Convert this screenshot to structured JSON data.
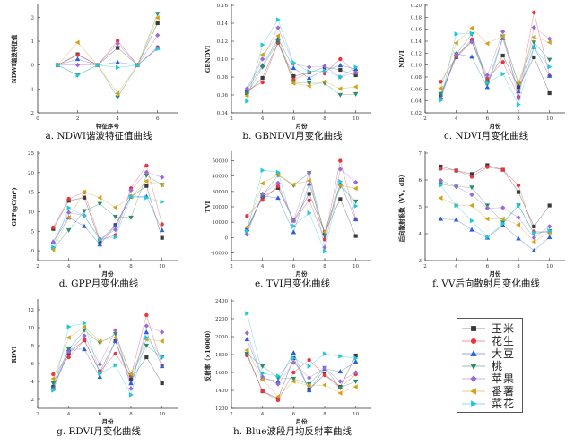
{
  "series_styles": [
    {
      "name": "玉米",
      "color": "#3a3a3a",
      "marker": "square"
    },
    {
      "name": "花生",
      "color": "#e8353f",
      "marker": "circle"
    },
    {
      "name": "大豆",
      "color": "#2b5fd6",
      "marker": "triangle-up"
    },
    {
      "name": "桃",
      "color": "#2e8b68",
      "marker": "triangle-down"
    },
    {
      "name": "苹果",
      "color": "#9a6ad6",
      "marker": "diamond"
    },
    {
      "name": "番薯",
      "color": "#d4a017",
      "marker": "triangle-left"
    },
    {
      "name": "菜花",
      "color": "#1ec8d8",
      "marker": "triangle-right"
    }
  ],
  "legend": {
    "items": [
      "玉米",
      "花生",
      "大豆",
      "桃",
      "苹果",
      "番薯",
      "菜花"
    ]
  },
  "chart_data": [
    {
      "id": "a",
      "type": "line",
      "title": "a. NDWI谐波特征值曲线",
      "xlabel": "特征序号",
      "ylabel": "NDWI谐波特征值",
      "xlim": [
        0,
        7
      ],
      "ylim": [
        -2,
        2.5
      ],
      "xticks": [
        0,
        2,
        4,
        6
      ],
      "xtick_labels": [
        "0",
        "2",
        "4",
        "6"
      ],
      "yticks": [
        -2,
        -1,
        0,
        1,
        2
      ],
      "ytick_labels": [
        "-2",
        "-1",
        "0",
        "1",
        "2"
      ],
      "x": [
        1,
        2,
        3,
        4,
        5,
        6
      ],
      "series": [
        {
          "name": "玉米",
          "values": [
            0,
            0.45,
            0,
            0.72,
            0,
            1.75
          ]
        },
        {
          "name": "花生",
          "values": [
            0,
            0.42,
            0,
            1.02,
            0,
            0.75
          ]
        },
        {
          "name": "大豆",
          "values": [
            0,
            0.25,
            0,
            0.12,
            0,
            0.72
          ]
        },
        {
          "name": "桃",
          "values": [
            0,
            -0.42,
            0,
            -1.35,
            0,
            2.15
          ]
        },
        {
          "name": "苹果",
          "values": [
            0,
            0.0,
            0,
            0.9,
            0,
            1.25
          ]
        },
        {
          "name": "番薯",
          "values": [
            0,
            0.95,
            0,
            -1.18,
            0,
            1.98
          ]
        },
        {
          "name": "菜花",
          "values": [
            0,
            -0.42,
            0,
            -0.1,
            0,
            0.68
          ]
        }
      ]
    },
    {
      "id": "b",
      "type": "line",
      "title": "b. GBNDVI月变化曲线",
      "xlabel": "月份",
      "ylabel": "GBNDVI",
      "xlim": [
        2,
        11
      ],
      "ylim": [
        0.04,
        0.16
      ],
      "xticks": [
        2,
        4,
        6,
        8,
        10
      ],
      "xtick_labels": [
        "2",
        "4",
        "6",
        "8",
        "10"
      ],
      "yticks": [
        0.04,
        0.06,
        0.08,
        0.1,
        0.12,
        0.14,
        0.16
      ],
      "ytick_labels": [
        "0.04",
        "0.06",
        "0.08",
        "0.10",
        "0.12",
        "0.14",
        "0.16"
      ],
      "x": [
        3,
        4,
        5,
        6,
        7,
        8,
        9,
        10
      ],
      "series": [
        {
          "name": "玉米",
          "values": [
            0.062,
            0.079,
            0.119,
            0.081,
            0.085,
            0.091,
            0.088,
            0.082
          ]
        },
        {
          "name": "花生",
          "values": [
            0.065,
            0.074,
            0.118,
            0.077,
            0.085,
            0.084,
            0.1,
            0.085
          ]
        },
        {
          "name": "大豆",
          "values": [
            0.066,
            0.093,
            0.123,
            0.09,
            0.079,
            0.088,
            0.093,
            0.089
          ]
        },
        {
          "name": "桃",
          "values": [
            0.061,
            0.091,
            0.12,
            0.074,
            0.073,
            0.073,
            0.06,
            0.061
          ]
        },
        {
          "name": "苹果",
          "values": [
            0.067,
            0.1,
            0.135,
            0.095,
            0.091,
            0.092,
            0.08,
            0.085
          ]
        },
        {
          "name": "番薯",
          "values": [
            0.059,
            0.105,
            0.126,
            0.073,
            0.07,
            0.075,
            0.067,
            0.069
          ]
        },
        {
          "name": "菜花",
          "values": [
            0.053,
            0.116,
            0.144,
            0.096,
            0.086,
            0.087,
            0.08,
            0.091
          ]
        }
      ]
    },
    {
      "id": "c",
      "type": "line",
      "title": "c. NDVI月变化曲线",
      "xlabel": "月份",
      "ylabel": "NDVI",
      "xlim": [
        2,
        11
      ],
      "ylim": [
        0.02,
        0.2
      ],
      "xticks": [
        2,
        4,
        6,
        8,
        10
      ],
      "xtick_labels": [
        "2",
        "4",
        "6",
        "8",
        "10"
      ],
      "yticks": [
        0.02,
        0.04,
        0.06,
        0.08,
        0.1,
        0.12,
        0.14,
        0.16,
        0.18,
        0.2
      ],
      "ytick_labels": [
        "0.02",
        "0.04",
        "0.06",
        "0.08",
        "0.10",
        "0.12",
        "0.14",
        "0.16",
        "0.18",
        "0.20"
      ],
      "x": [
        3,
        4,
        5,
        6,
        7,
        8,
        9,
        10
      ],
      "series": [
        {
          "name": "玉米",
          "values": [
            0.05,
            0.113,
            0.14,
            0.072,
            0.116,
            0.063,
            0.113,
            0.053
          ]
        },
        {
          "name": "花生",
          "values": [
            0.072,
            0.114,
            0.143,
            0.077,
            0.105,
            0.047,
            0.188,
            0.082
          ]
        },
        {
          "name": "大豆",
          "values": [
            0.046,
            0.119,
            0.114,
            0.063,
            0.145,
            0.056,
            0.13,
            0.082
          ]
        },
        {
          "name": "桃",
          "values": [
            0.052,
            0.118,
            0.152,
            0.068,
            0.148,
            0.068,
            0.138,
            0.109
          ]
        },
        {
          "name": "苹果",
          "values": [
            0.043,
            0.117,
            0.139,
            0.083,
            0.156,
            0.044,
            0.163,
            0.144
          ]
        },
        {
          "name": "番薯",
          "values": [
            0.061,
            0.137,
            0.162,
            0.136,
            0.148,
            0.071,
            0.147,
            0.138
          ]
        },
        {
          "name": "菜花",
          "values": [
            0.041,
            0.152,
            0.153,
            0.07,
            0.085,
            0.034,
            0.13,
            0.097
          ]
        }
      ]
    },
    {
      "id": "d",
      "type": "line",
      "title": "d. GPP月变化曲线",
      "xlabel": "月份",
      "ylabel": "GPP(gC/m²)",
      "xlim": [
        2,
        11
      ],
      "ylim": [
        -2.5,
        25
      ],
      "xticks": [
        2,
        4,
        6,
        8,
        10
      ],
      "xtick_labels": [
        "2",
        "4",
        "6",
        "8",
        "10"
      ],
      "yticks": [
        0,
        5,
        10,
        15,
        20,
        25
      ],
      "ytick_labels": [
        "0",
        "5",
        "10",
        "15",
        "20",
        "25"
      ],
      "x": [
        3,
        4,
        5,
        6,
        7,
        8,
        9,
        10
      ],
      "series": [
        {
          "name": "玉米",
          "values": [
            5.6,
            12.8,
            13.6,
            2.4,
            6.6,
            13.8,
            16.6,
            3.3
          ]
        },
        {
          "name": "花生",
          "values": [
            6.0,
            13.3,
            15.0,
            2.8,
            4.0,
            16.0,
            21.8,
            6.8
          ]
        },
        {
          "name": "大豆",
          "values": [
            2.3,
            8.5,
            6.3,
            1.6,
            6.4,
            13.9,
            13.9,
            5.3
          ]
        },
        {
          "name": "桃",
          "values": [
            0.4,
            5.3,
            10.2,
            12.0,
            8.7,
            8.5,
            19.3,
            16.9
          ]
        },
        {
          "name": "苹果",
          "values": [
            2.2,
            9.8,
            9.0,
            3.0,
            5.4,
            15.5,
            20.1,
            18.8
          ]
        },
        {
          "name": "番薯",
          "values": [
            0.4,
            8.5,
            15.1,
            13.6,
            11.1,
            13.8,
            17.8,
            16.9
          ]
        },
        {
          "name": "菜花",
          "values": [
            0.9,
            11.0,
            8.9,
            2.8,
            3.5,
            13.8,
            13.6,
            12.5
          ]
        }
      ]
    },
    {
      "id": "e",
      "type": "line",
      "title": "e. TVI月变化曲线",
      "xlabel": "月份",
      "ylabel": "TVI",
      "xlim": [
        2,
        11
      ],
      "ylim": [
        -15000,
        55000
      ],
      "xticks": [
        2,
        4,
        6,
        8,
        10
      ],
      "xtick_labels": [
        "2",
        "4",
        "6",
        "8",
        "10"
      ],
      "yticks": [
        -10000,
        0,
        10000,
        20000,
        30000,
        40000,
        50000
      ],
      "ytick_labels": [
        "-10000",
        "0",
        "10000",
        "20000",
        "30000",
        "40000",
        "50000"
      ],
      "x": [
        3,
        4,
        5,
        6,
        7,
        8,
        9,
        10
      ],
      "series": [
        {
          "name": "玉米",
          "values": [
            5000,
            26500,
            32300,
            11000,
            28500,
            3300,
            25000,
            1000
          ]
        },
        {
          "name": "花生",
          "values": [
            14000,
            24500,
            33500,
            11000,
            24200,
            -1200,
            50000,
            12000
          ]
        },
        {
          "name": "大豆",
          "values": [
            5500,
            27000,
            25800,
            3500,
            35000,
            3500,
            35000,
            11800
          ]
        },
        {
          "name": "桃",
          "values": [
            3500,
            27500,
            40500,
            34000,
            42000,
            1000,
            33500,
            23500
          ]
        },
        {
          "name": "苹果",
          "values": [
            2000,
            28500,
            35500,
            11000,
            42000,
            -6500,
            44500,
            36000
          ]
        },
        {
          "name": "番薯",
          "values": [
            6800,
            35300,
            41000,
            34500,
            37000,
            3600,
            34000,
            32000
          ]
        },
        {
          "name": "菜花",
          "values": [
            4000,
            43800,
            42500,
            7500,
            16000,
            -9000,
            36500,
            20500
          ]
        }
      ]
    },
    {
      "id": "f",
      "type": "line",
      "title": "f. VV后向散射月变化曲线",
      "xlabel": "月份",
      "ylabel": "后向散射系数（VV，dB）",
      "xlim": [
        2,
        11
      ],
      "ylim": [
        3,
        7
      ],
      "xticks": [
        2,
        4,
        6,
        8,
        10
      ],
      "xtick_labels": [
        "2",
        "4",
        "6",
        "8",
        "10"
      ],
      "yticks": [
        3,
        4,
        5,
        6,
        7
      ],
      "ytick_labels": [
        "3",
        "4",
        "5",
        "6",
        "7"
      ],
      "x": [
        3,
        4,
        5,
        6,
        7,
        8,
        9,
        10
      ],
      "series": [
        {
          "name": "玉米",
          "values": [
            6.5,
            6.35,
            6.22,
            6.55,
            6.38,
            5.55,
            4.27,
            5.05
          ]
        },
        {
          "name": "花生",
          "values": [
            6.42,
            6.35,
            6.12,
            6.48,
            6.38,
            5.8,
            4.08,
            4.05
          ]
        },
        {
          "name": "大豆",
          "values": [
            4.55,
            4.52,
            4.15,
            3.85,
            4.32,
            3.82,
            3.37,
            3.87
          ]
        },
        {
          "name": "桃",
          "values": [
            5.85,
            5.75,
            5.72,
            5.05,
            4.42,
            5.05,
            4.0,
            4.1
          ]
        },
        {
          "name": "苹果",
          "values": [
            5.98,
            5.75,
            5.45,
            4.95,
            4.97,
            4.6,
            3.85,
            4.27
          ]
        },
        {
          "name": "番薯",
          "values": [
            5.33,
            5.05,
            5.05,
            4.55,
            4.55,
            4.33,
            3.7,
            4.05
          ]
        },
        {
          "name": "菜花",
          "values": [
            5.8,
            5.05,
            4.48,
            3.87,
            4.37,
            5.05,
            4.03,
            4.1
          ]
        }
      ]
    },
    {
      "id": "g",
      "type": "line",
      "title": "g. RDVI月变化曲线",
      "xlabel": "月份",
      "ylabel": "RDVI",
      "xlim": [
        2,
        11
      ],
      "ylim": [
        1,
        13
      ],
      "xticks": [
        2,
        4,
        6,
        8,
        10
      ],
      "xtick_labels": [
        "2",
        "4",
        "6",
        "8",
        "10"
      ],
      "yticks": [
        2,
        4,
        6,
        8,
        10,
        12
      ],
      "ytick_labels": [
        "2",
        "4",
        "6",
        "8",
        "10",
        "12"
      ],
      "x": [
        3,
        4,
        5,
        6,
        7,
        8,
        9,
        10
      ],
      "series": [
        {
          "name": "玉米",
          "values": [
            3.4,
            7.2,
            8.6,
            5.1,
            8.5,
            4.2,
            6.7,
            3.8
          ]
        },
        {
          "name": "花生",
          "values": [
            4.8,
            6.7,
            8.6,
            5.1,
            7.1,
            4.6,
            11.4,
            5.8
          ]
        },
        {
          "name": "大豆",
          "values": [
            3.3,
            7.6,
            7.6,
            4.5,
            8.5,
            3.8,
            9.5,
            5.7
          ]
        },
        {
          "name": "桃",
          "values": [
            3.8,
            7.6,
            9.7,
            8.3,
            9.3,
            4.7,
            8.0,
            6.7
          ]
        },
        {
          "name": "苹果",
          "values": [
            3.1,
            7.3,
            9.1,
            5.9,
            9.7,
            3.2,
            10.2,
            9.5
          ]
        },
        {
          "name": "番薯",
          "values": [
            4.3,
            8.9,
            10.1,
            8.5,
            8.9,
            4.8,
            8.7,
            8.5
          ]
        },
        {
          "name": "菜花",
          "values": [
            3.0,
            10.1,
            10.5,
            4.9,
            5.8,
            2.5,
            8.9,
            6.7
          ]
        }
      ]
    },
    {
      "id": "h",
      "type": "line",
      "title": "h. Blue波段月均反射率曲线",
      "xlabel": "月份",
      "ylabel": "反射率（×10000）",
      "xlim": [
        2,
        11
      ],
      "ylim": [
        1200,
        2400
      ],
      "xticks": [
        2,
        4,
        6,
        8,
        10
      ],
      "xtick_labels": [
        "2",
        "4",
        "6",
        "8",
        "10"
      ],
      "yticks": [
        1200,
        1400,
        1600,
        1800,
        2000,
        2200,
        2400
      ],
      "ytick_labels": [
        "1200",
        "1400",
        "1600",
        "1800",
        "2000",
        "2200",
        "2400"
      ],
      "x": [
        3,
        4,
        5,
        6,
        7,
        8,
        9,
        10
      ],
      "series": [
        {
          "name": "玉米",
          "values": [
            1810,
            1390,
            1310,
            1760,
            1410,
            1580,
            1440,
            1790
          ]
        },
        {
          "name": "花生",
          "values": [
            1790,
            1390,
            1290,
            1600,
            1740,
            1570,
            1430,
            1580
          ]
        },
        {
          "name": "大豆",
          "values": [
            1970,
            1540,
            1500,
            1820,
            1400,
            1640,
            1610,
            1720
          ]
        },
        {
          "name": "桃",
          "values": [
            1810,
            1670,
            1540,
            1530,
            1470,
            1650,
            1430,
            1500
          ]
        },
        {
          "name": "苹果",
          "values": [
            2040,
            1550,
            1470,
            1710,
            1540,
            1650,
            1500,
            1600
          ]
        },
        {
          "name": "番薯",
          "values": [
            1850,
            1520,
            1330,
            1500,
            1450,
            1460,
            1370,
            1440
          ]
        },
        {
          "name": "菜花",
          "values": [
            2260,
            1590,
            1560,
            1760,
            1670,
            1810,
            1780,
            1760
          ]
        }
      ]
    }
  ]
}
